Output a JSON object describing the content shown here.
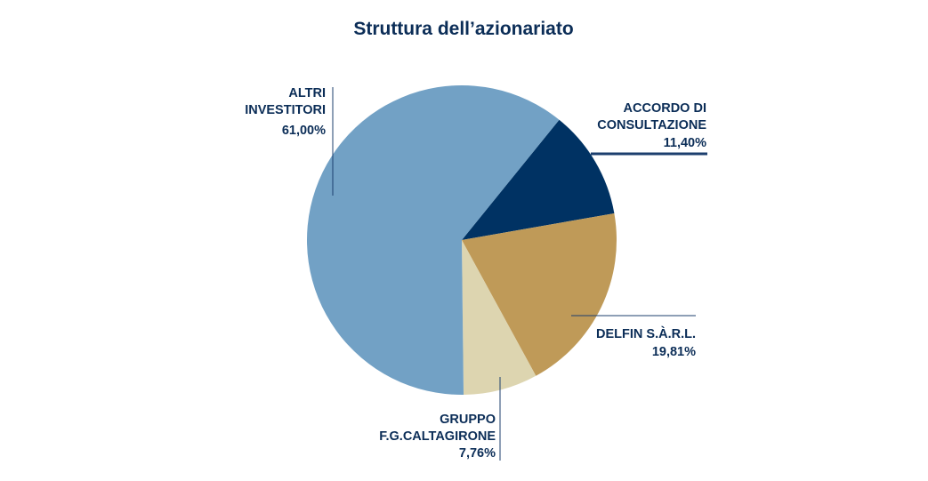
{
  "colors": {
    "text": "#0b2d57",
    "leader": "#1c3f6e",
    "altri": "#72a1c5",
    "accordo": "#003263",
    "delfin": "#bf9a58",
    "gruppo": "#ddd5b0"
  },
  "chart_data": {
    "type": "pie",
    "title": "Struttura dell’azionariato",
    "slices": [
      {
        "label_lines": [
          "ACCORDO DI",
          "CONSULTAZIONE"
        ],
        "value": 11.4,
        "value_label": "11,40%",
        "color": "#003263"
      },
      {
        "label_lines": [
          "DELFIN S.À.R.L."
        ],
        "value": 19.81,
        "value_label": "19,81%",
        "color": "#bf9a58"
      },
      {
        "label_lines": [
          "GRUPPO",
          "F.G.CALTAGIRONE"
        ],
        "value": 7.76,
        "value_label": "7,76%",
        "color": "#ddd5b0"
      },
      {
        "label_lines": [
          "ALTRI",
          "INVESTITORI"
        ],
        "value": 61.0,
        "value_label": "61,00%",
        "color": "#72a1c5"
      }
    ]
  }
}
